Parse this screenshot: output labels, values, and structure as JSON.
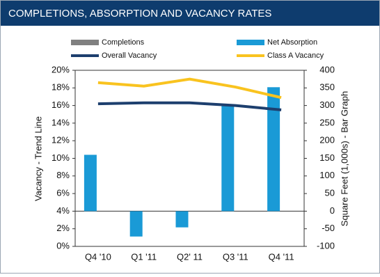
{
  "chart_data": {
    "type": "combo",
    "title": "COMPLETIONS, ABSORPTION AND VACANCY RATES",
    "y_label": "Vacancy - Trend Line",
    "y2_label": "Square Feet (1,000s) - Bar Graph",
    "categories": [
      "Q4 '10",
      "Q1 '11",
      "Q2' 11",
      "Q3 '11",
      "Q4 '11"
    ],
    "series": [
      {
        "name": "Completions",
        "type": "bar",
        "axis": "y2",
        "color": "#808080",
        "values": [
          0,
          0,
          0,
          0,
          0
        ]
      },
      {
        "name": "Net Absorption",
        "type": "bar",
        "axis": "y2",
        "color": "#1a9ad6",
        "values": [
          160,
          -72,
          -46,
          303,
          352
        ]
      },
      {
        "name": "Overall Vacancy",
        "type": "line",
        "color": "#1d3f6e",
        "values": [
          16.2,
          16.3,
          16.3,
          16.0,
          15.5
        ]
      },
      {
        "name": "Class A Vacancy",
        "type": "line",
        "color": "#f9c31f",
        "values": [
          18.6,
          18.2,
          19.0,
          18.1,
          16.9
        ]
      }
    ],
    "ylim": [
      0,
      20
    ],
    "yticks": [
      {
        "value": 0,
        "label": "0%"
      },
      {
        "value": 2,
        "label": "2%"
      },
      {
        "value": 4,
        "label": "4%"
      },
      {
        "value": 6,
        "label": "6%"
      },
      {
        "value": 8,
        "label": "8%"
      },
      {
        "value": 10,
        "label": "10%"
      },
      {
        "value": 12,
        "label": "12%"
      },
      {
        "value": 14,
        "label": "14%"
      },
      {
        "value": 16,
        "label": "16%"
      },
      {
        "value": 18,
        "label": "18%"
      },
      {
        "value": 20,
        "label": "20%"
      }
    ],
    "y2lim": [
      -100,
      400
    ],
    "y2ticks": [
      -100,
      -50,
      0,
      50,
      100,
      150,
      200,
      250,
      300,
      350,
      400
    ],
    "grid": false
  }
}
